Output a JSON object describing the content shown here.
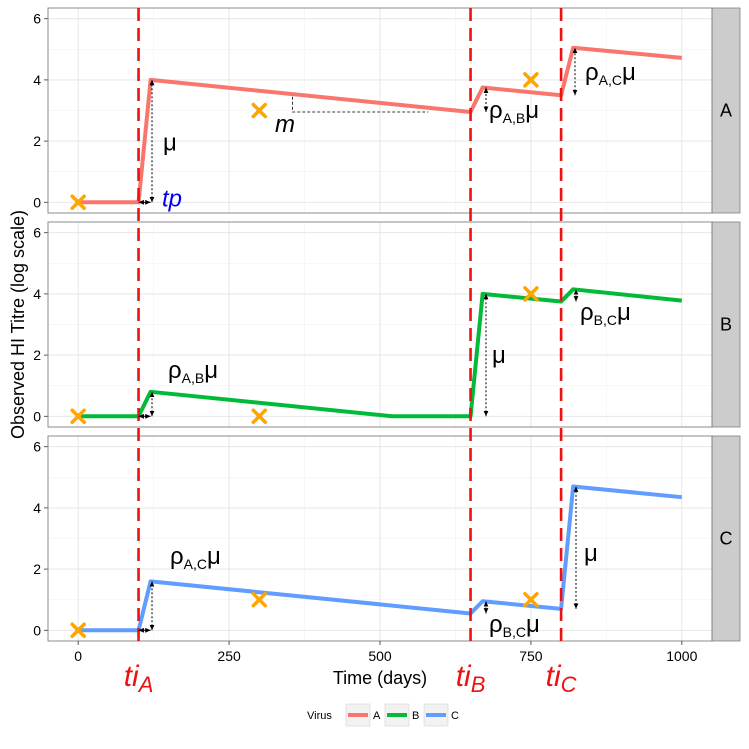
{
  "chart_data": {
    "type": "line",
    "xlabel": "Time (days)",
    "ylabel": "Observed HI Titre (log scale)",
    "xlim": [
      -50,
      1050
    ],
    "ylim": [
      -0.35,
      6.35
    ],
    "x_ticks": [
      0,
      250,
      500,
      750,
      1000
    ],
    "y_ticks": [
      0,
      2,
      4,
      6
    ],
    "grid": true,
    "legend_position": "bottom",
    "legend_title": "Virus",
    "facets": [
      "A",
      "B",
      "C"
    ],
    "colors": {
      "A": "#F8766D",
      "B": "#00BA38",
      "C": "#619CFF",
      "infection": "#ee1111",
      "observation": "#FFA500"
    },
    "series": [
      {
        "name": "A",
        "x": [
          0,
          100,
          120,
          650,
          670,
          800,
          820,
          1000
        ],
        "y": [
          0,
          0,
          4.0,
          2.95,
          3.75,
          3.5,
          5.05,
          4.72
        ]
      },
      {
        "name": "B",
        "x": [
          0,
          100,
          120,
          520,
          650,
          670,
          800,
          820,
          1000
        ],
        "y": [
          0,
          0,
          0.8,
          0,
          0,
          4.0,
          3.75,
          4.15,
          3.78
        ]
      },
      {
        "name": "C",
        "x": [
          0,
          100,
          120,
          650,
          670,
          800,
          820,
          1000
        ],
        "y": [
          0,
          0,
          1.6,
          0.55,
          0.95,
          0.7,
          4.7,
          4.35
        ]
      }
    ],
    "observations": [
      {
        "facet": "A",
        "x": 0,
        "y": 0
      },
      {
        "facet": "A",
        "x": 300,
        "y": 3.0
      },
      {
        "facet": "A",
        "x": 750,
        "y": 4.0
      },
      {
        "facet": "B",
        "x": 0,
        "y": 0
      },
      {
        "facet": "B",
        "x": 300,
        "y": 0
      },
      {
        "facet": "B",
        "x": 750,
        "y": 4.0
      },
      {
        "facet": "C",
        "x": 0,
        "y": 0
      },
      {
        "facet": "C",
        "x": 300,
        "y": 1.0
      },
      {
        "facet": "C",
        "x": 750,
        "y": 1.0
      }
    ],
    "infection_times": [
      {
        "base": "ti",
        "sub": "A",
        "x": 100
      },
      {
        "base": "ti",
        "sub": "B",
        "x": 650
      },
      {
        "base": "ti",
        "sub": "C",
        "x": 800
      }
    ],
    "annotations": {
      "mu": "μ",
      "tp": "tp",
      "m": "m",
      "rho": "ρ",
      "rho_AB_sub": "A,B",
      "rho_AC_sub": "A,C",
      "rho_BC_sub": "B,C"
    },
    "legend": [
      {
        "label": "A",
        "color": "#F8766D"
      },
      {
        "label": "B",
        "color": "#00BA38"
      },
      {
        "label": "C",
        "color": "#619CFF"
      }
    ]
  }
}
